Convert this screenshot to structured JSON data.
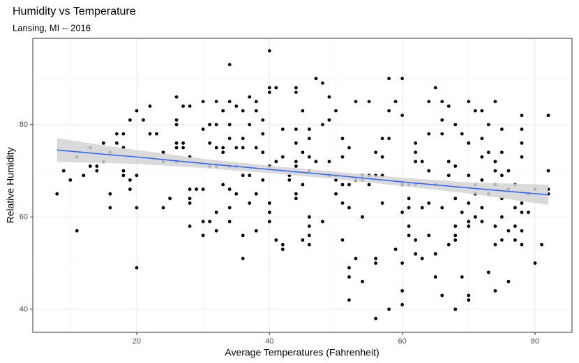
{
  "chart_data": {
    "type": "scatter",
    "title": "Humidity vs Temperature",
    "subtitle": "Lansing, MI -- 2016",
    "xlabel": "Average Temperatures (Fahrenheit)",
    "ylabel": "Relative Humidity",
    "xlim": [
      4.35,
      85.57
    ],
    "ylim": [
      35,
      98.7
    ],
    "xticks": [
      20,
      40,
      60,
      80
    ],
    "yticks": [
      40,
      60,
      80
    ],
    "xminor": [
      10,
      30,
      50,
      70
    ],
    "yminor": [
      50,
      70,
      90
    ],
    "grid": true,
    "color": "#000000",
    "x": [
      8,
      9,
      10,
      11,
      11,
      12,
      13,
      13,
      14,
      14,
      15,
      15,
      16,
      16,
      16,
      17,
      17,
      18,
      18,
      18,
      18,
      19,
      19,
      19,
      20,
      20,
      20,
      20,
      21,
      22,
      22,
      23,
      24,
      24,
      24,
      25,
      26,
      26,
      26,
      26,
      26,
      26,
      27,
      27,
      27,
      28,
      28,
      28,
      28,
      28,
      28,
      29,
      30,
      30,
      30,
      30,
      30,
      31,
      31,
      31,
      31,
      32,
      32,
      32,
      32,
      32,
      32,
      33,
      33,
      33,
      33,
      34,
      34,
      34,
      34,
      34,
      34,
      34,
      34,
      35,
      35,
      35,
      35,
      36,
      36,
      36,
      36,
      36,
      36,
      37,
      37,
      37,
      37,
      38,
      38,
      38,
      38,
      38,
      39,
      39,
      39,
      39,
      40,
      40,
      40,
      40,
      40,
      40,
      40,
      41,
      41,
      41,
      42,
      42,
      42,
      42,
      43,
      43,
      44,
      44,
      44,
      44,
      44,
      44,
      44,
      44,
      45,
      45,
      45,
      45,
      46,
      46,
      46,
      46,
      46,
      46,
      46,
      46,
      47,
      47,
      48,
      48,
      48,
      49,
      49,
      49,
      49,
      50,
      50,
      50,
      50,
      51,
      51,
      51,
      51,
      51,
      52,
      52,
      52,
      52,
      52,
      52,
      53,
      53,
      53,
      54,
      54,
      54,
      54,
      55,
      55,
      55,
      56,
      56,
      56,
      56,
      56,
      57,
      57,
      57,
      57,
      58,
      58,
      58,
      58,
      59,
      59,
      60,
      60,
      60,
      60,
      60,
      60,
      60,
      61,
      61,
      61,
      61,
      61,
      62,
      62,
      62,
      62,
      62,
      62,
      63,
      63,
      63,
      64,
      64,
      64,
      64,
      64,
      65,
      65,
      65,
      65,
      66,
      66,
      66,
      66,
      66,
      67,
      67,
      67,
      67,
      68,
      68,
      68,
      68,
      68,
      68,
      68,
      69,
      69,
      69,
      70,
      70,
      70,
      70,
      70,
      70,
      70,
      70,
      71,
      71,
      71,
      71,
      72,
      72,
      72,
      72,
      72,
      72,
      73,
      73,
      73,
      73,
      74,
      74,
      74,
      74,
      74,
      74,
      74,
      75,
      75,
      75,
      75,
      75,
      75,
      76,
      76,
      76,
      76,
      77,
      77,
      77,
      77,
      78,
      78,
      78,
      78,
      78,
      78,
      78,
      78,
      79,
      79,
      80,
      80,
      81,
      82,
      82,
      82,
      82
    ],
    "values": [
      65,
      70,
      68,
      57,
      73,
      69,
      75,
      71,
      71,
      70,
      76,
      72,
      65,
      62,
      74,
      78,
      76,
      78,
      75,
      70,
      69,
      81,
      66,
      68,
      83,
      69,
      62,
      49,
      81,
      84,
      78,
      78,
      62,
      74,
      72,
      64,
      86,
      81,
      80,
      76,
      75,
      72,
      84,
      76,
      75,
      84,
      73,
      66,
      64,
      63,
      58,
      66,
      85,
      79,
      66,
      59,
      56,
      80,
      76,
      71,
      59,
      85,
      80,
      75,
      71,
      61,
      57,
      83,
      75,
      74,
      67,
      93,
      85,
      80,
      77,
      71,
      66,
      62,
      59,
      84,
      75,
      71,
      65,
      83,
      77,
      75,
      69,
      51,
      56,
      86,
      80,
      69,
      63,
      85,
      83,
      75,
      65,
      57,
      81,
      78,
      74,
      68,
      96,
      88,
      87,
      71,
      63,
      61,
      59,
      88,
      72,
      55,
      79,
      73,
      54,
      53,
      68,
      69,
      88,
      87,
      79,
      76,
      72,
      71,
      65,
      64,
      83,
      74,
      67,
      55,
      79,
      77,
      73,
      70,
      60,
      58,
      56,
      54,
      90,
      72,
      89,
      80,
      59,
      86,
      81,
      72,
      69,
      83,
      68,
      65,
      69,
      77,
      73,
      67,
      55,
      63,
      75,
      67,
      62,
      49,
      47,
      42,
      85,
      68,
      51,
      68,
      60,
      46,
      69,
      85,
      67,
      69,
      74,
      69,
      51,
      50,
      38,
      77,
      73,
      69,
      63,
      90,
      83,
      77,
      40,
      85,
      53,
      90,
      82,
      67,
      61,
      50,
      44,
      41,
      67,
      62,
      58,
      56,
      64,
      76,
      74,
      72,
      67,
      55,
      52,
      72,
      62,
      51,
      85,
      78,
      70,
      63,
      56,
      88,
      67,
      52,
      47,
      85,
      81,
      78,
      62,
      43,
      84,
      72,
      69,
      54,
      80,
      71,
      64,
      58,
      56,
      55,
      40,
      78,
      61,
      47,
      85,
      76,
      69,
      63,
      59,
      58,
      43,
      42,
      83,
      67,
      65,
      60,
      83,
      77,
      73,
      68,
      62,
      59,
      80,
      74,
      65,
      48,
      85,
      72,
      70,
      67,
      58,
      54,
      44,
      79,
      74,
      69,
      64,
      60,
      55,
      70,
      66,
      57,
      46,
      67,
      62,
      58,
      55,
      82,
      79,
      76,
      73,
      63,
      61,
      57,
      54,
      65,
      61,
      66,
      50,
      54,
      82,
      70,
      66,
      65
    ],
    "fit": {
      "color": "#3366ff",
      "band_color": "#d3d3d3",
      "x": [
        8,
        15,
        20,
        30,
        40,
        50,
        60,
        70,
        82
      ],
      "values": [
        74.5,
        73.6,
        73.0,
        71.6,
        70.3,
        69.0,
        67.6,
        66.3,
        64.8
      ],
      "lower": [
        71.9,
        71.7,
        71.5,
        70.6,
        69.5,
        68.2,
        66.7,
        65.1,
        62.6
      ],
      "upper": [
        77.1,
        75.5,
        74.5,
        72.6,
        71.1,
        69.8,
        68.5,
        67.5,
        67.0
      ]
    }
  }
}
